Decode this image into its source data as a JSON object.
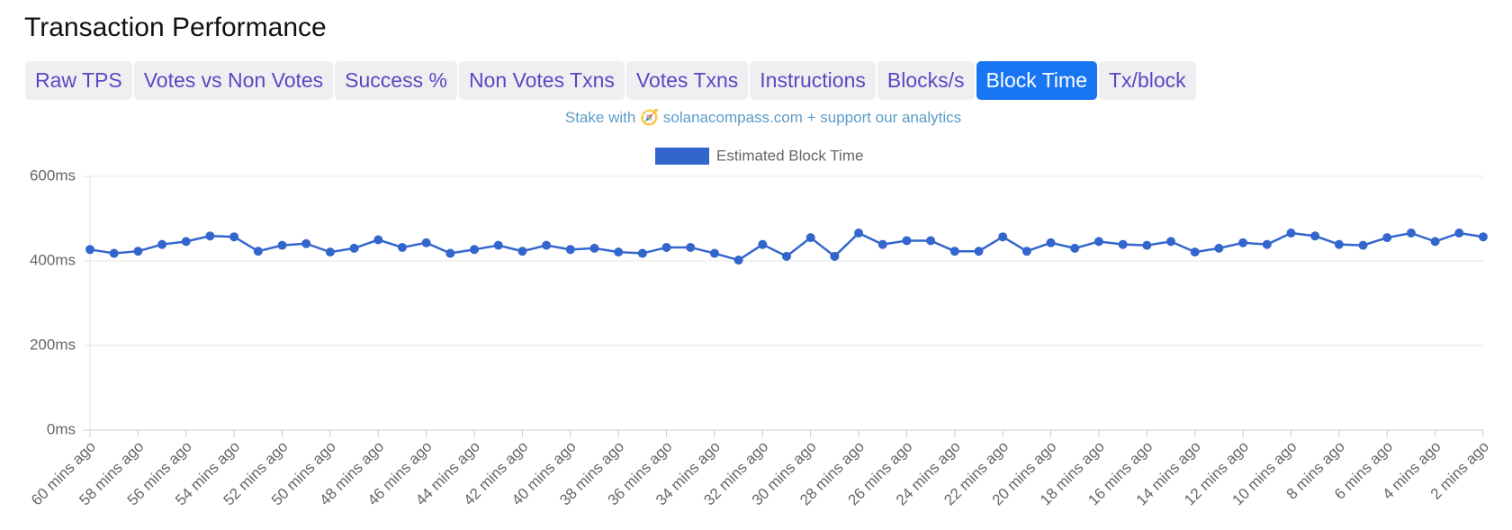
{
  "header": {
    "title": "Transaction Performance",
    "tabs": [
      "Raw TPS",
      "Votes vs Non Votes",
      "Success %",
      "Non Votes Txns",
      "Votes Txns",
      "Instructions",
      "Blocks/s",
      "Block Time",
      "Tx/block"
    ],
    "active_tab": 7,
    "promo": "Stake with 🧭 solanacompass.com + support our analytics"
  },
  "chart_data": {
    "type": "line",
    "categories": [
      "60 mins ago",
      null,
      "58 mins ago",
      null,
      "56 mins ago",
      null,
      "54 mins ago",
      null,
      "52 mins ago",
      null,
      "50 mins ago",
      null,
      "48 mins ago",
      null,
      "46 mins ago",
      null,
      "44 mins ago",
      null,
      "42 mins ago",
      null,
      "40 mins ago",
      null,
      "38 mins ago",
      null,
      "36 mins ago",
      null,
      "34 mins ago",
      null,
      "32 mins ago",
      null,
      "30 mins ago",
      null,
      "28 mins ago",
      null,
      "26 mins ago",
      null,
      "24 mins ago",
      null,
      "22 mins ago",
      null,
      "20 mins ago",
      null,
      "18 mins ago",
      null,
      "16 mins ago",
      null,
      "14 mins ago",
      null,
      "12 mins ago",
      null,
      "10 mins ago",
      null,
      "8 mins ago",
      null,
      "6 mins ago",
      null,
      "4 mins ago",
      null,
      "2 mins ago"
    ],
    "series": [
      {
        "name": "Estimated Block Time",
        "color": "#3366cc",
        "values": [
          427,
          418,
          423,
          439,
          446,
          459,
          457,
          423,
          437,
          441,
          421,
          430,
          450,
          432,
          443,
          418,
          427,
          437,
          423,
          437,
          427,
          430,
          421,
          418,
          432,
          432,
          418,
          402,
          439,
          411,
          455,
          411,
          466,
          439,
          448,
          448,
          423,
          423,
          457,
          423,
          443,
          430,
          446,
          439,
          437,
          446,
          421,
          430,
          443,
          439,
          466,
          459,
          439,
          437,
          455,
          466,
          446,
          466,
          457
        ]
      }
    ],
    "ylim": [
      0,
      600
    ],
    "yticks": [
      {
        "value": 0,
        "label": "0ms"
      },
      {
        "value": 200,
        "label": "200ms"
      },
      {
        "value": 400,
        "label": "400ms"
      },
      {
        "value": 600,
        "label": "600ms"
      }
    ],
    "grid": true,
    "legend": "top"
  }
}
